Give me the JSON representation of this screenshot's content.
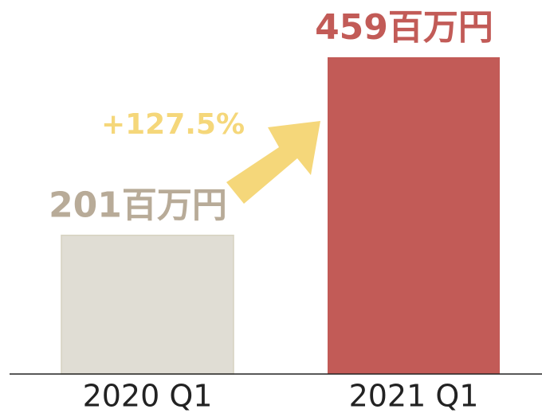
{
  "chart_data": {
    "type": "bar",
    "categories": [
      "2020 Q1",
      "2021 Q1"
    ],
    "values": [
      201,
      459
    ],
    "value_labels": [
      "201百万円",
      "459百万円"
    ],
    "colors": [
      "#e0ddd4",
      "#c25b57"
    ],
    "label_colors": [
      "#b8ab98",
      "#c25b57"
    ],
    "ylim": [
      0,
      520
    ],
    "annotation": "+127.5%",
    "annotation_color": "#f5d77a"
  }
}
